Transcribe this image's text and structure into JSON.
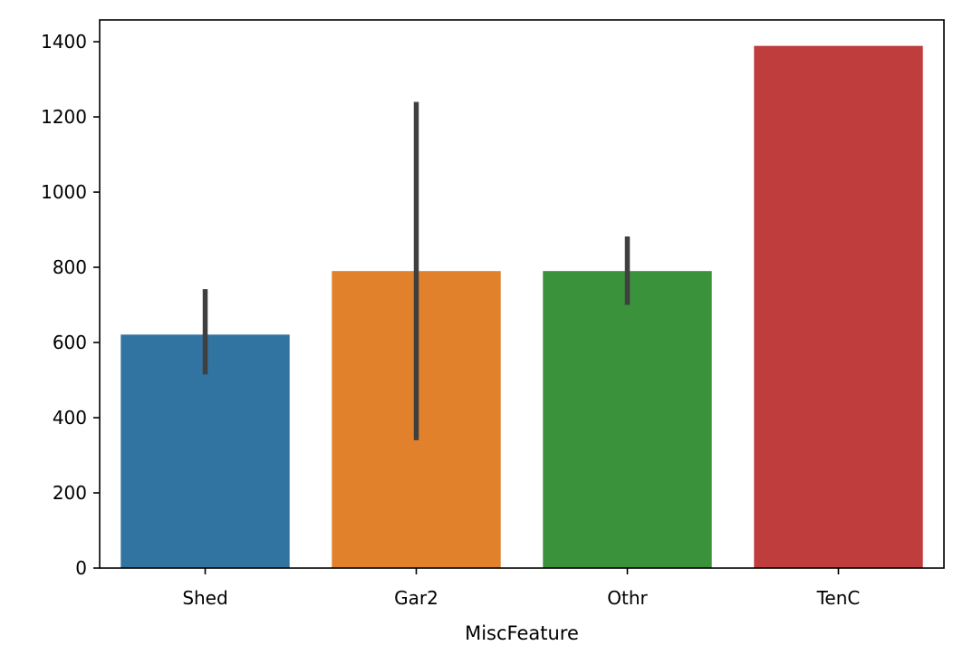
{
  "chart_data": {
    "type": "bar",
    "title": "",
    "xlabel": "MiscFeature",
    "ylabel": "",
    "categories": [
      "Shed",
      "Gar2",
      "Othr",
      "TenC"
    ],
    "values": [
      621,
      790,
      790,
      1389
    ],
    "error_low": [
      515,
      340,
      700,
      1389
    ],
    "error_high": [
      742,
      1240,
      882,
      1389
    ],
    "colors": [
      "#3274a1",
      "#e1812c",
      "#3a923a",
      "#c03d3e"
    ],
    "error_color": "#3f3f3f",
    "ylim": [
      0,
      1458
    ],
    "yticks": [
      0,
      200,
      400,
      600,
      800,
      1000,
      1200,
      1400
    ],
    "ytick_labels": [
      "0",
      "200",
      "400",
      "600",
      "800",
      "1000",
      "1200",
      "1400"
    ],
    "grid": false,
    "legend": "none"
  }
}
